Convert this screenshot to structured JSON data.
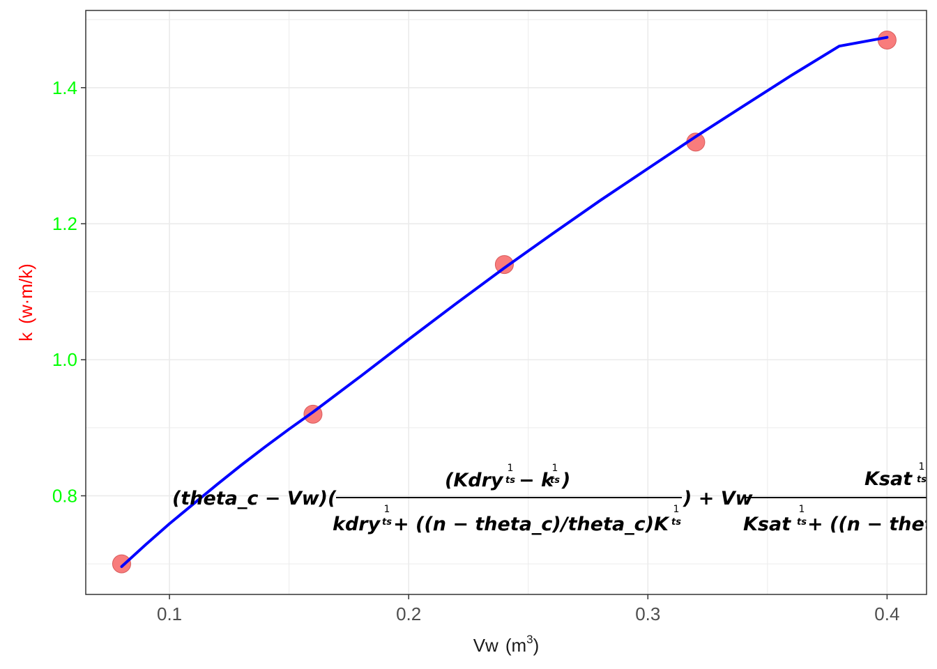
{
  "colors": {
    "point_fill": "#f87c7c",
    "point_stroke": "#d85c5c",
    "curve": "#0000ff",
    "y_tick_labels": "#00ff00",
    "y_title": "#ff0000",
    "x_tick_labels": "#4d4d4d",
    "x_title": "#1a1a1a",
    "grid": "#ebebeb",
    "panel_border": "#333333"
  },
  "chart_data": {
    "type": "scatter",
    "grid": true,
    "xlim": [
      0.065,
      0.4165
    ],
    "ylim": [
      0.655,
      1.5135
    ],
    "x_ticks": [
      0.1,
      0.2,
      0.3,
      0.4
    ],
    "x_tick_labels": [
      "0.1",
      "0.2",
      "0.3",
      "0.4"
    ],
    "y_ticks": [
      0.8,
      1.0,
      1.2,
      1.4
    ],
    "y_tick_labels": [
      "0.8",
      "1.0",
      "1.2",
      "1.4"
    ],
    "xlabel": "Vw",
    "xlabel_unit": "(m",
    "xlabel_unit_sup": "3",
    "xlabel_unit_close": ")",
    "ylabel": "k",
    "ylabel_unit": "(w·m/k)",
    "points": {
      "x": [
        0.08,
        0.16,
        0.24,
        0.32,
        0.4
      ],
      "y": [
        0.7,
        0.92,
        1.14,
        1.32,
        1.47
      ]
    },
    "fit_curve": {
      "x": [
        0.08,
        0.09,
        0.1,
        0.11,
        0.12,
        0.13,
        0.14,
        0.15,
        0.16,
        0.18,
        0.2,
        0.22,
        0.24,
        0.26,
        0.28,
        0.3,
        0.32,
        0.34,
        0.36,
        0.38,
        0.4
      ],
      "y": [
        0.696,
        0.728,
        0.759,
        0.788,
        0.817,
        0.845,
        0.872,
        0.898,
        0.923,
        0.976,
        1.03,
        1.083,
        1.135,
        1.185,
        1.234,
        1.281,
        1.328,
        1.373,
        1.418,
        1.461,
        1.474
      ]
    },
    "annotation": {
      "part1": "(theta_c − Vw)(",
      "frac1_num": "(Kdry",
      "frac1_num_mid": " − k",
      "frac1_num_end": ")",
      "frac1_den": "kdry",
      "frac1_den_mid": " + ((n − theta_c)/theta_c)K",
      "part2": ") + Vw",
      "frac2_num": "Ksat",
      "frac2_den": "Ksat",
      "frac2_den_mid": " + ((n − theta",
      "exp_num": "1",
      "exp_den": "ts"
    }
  }
}
